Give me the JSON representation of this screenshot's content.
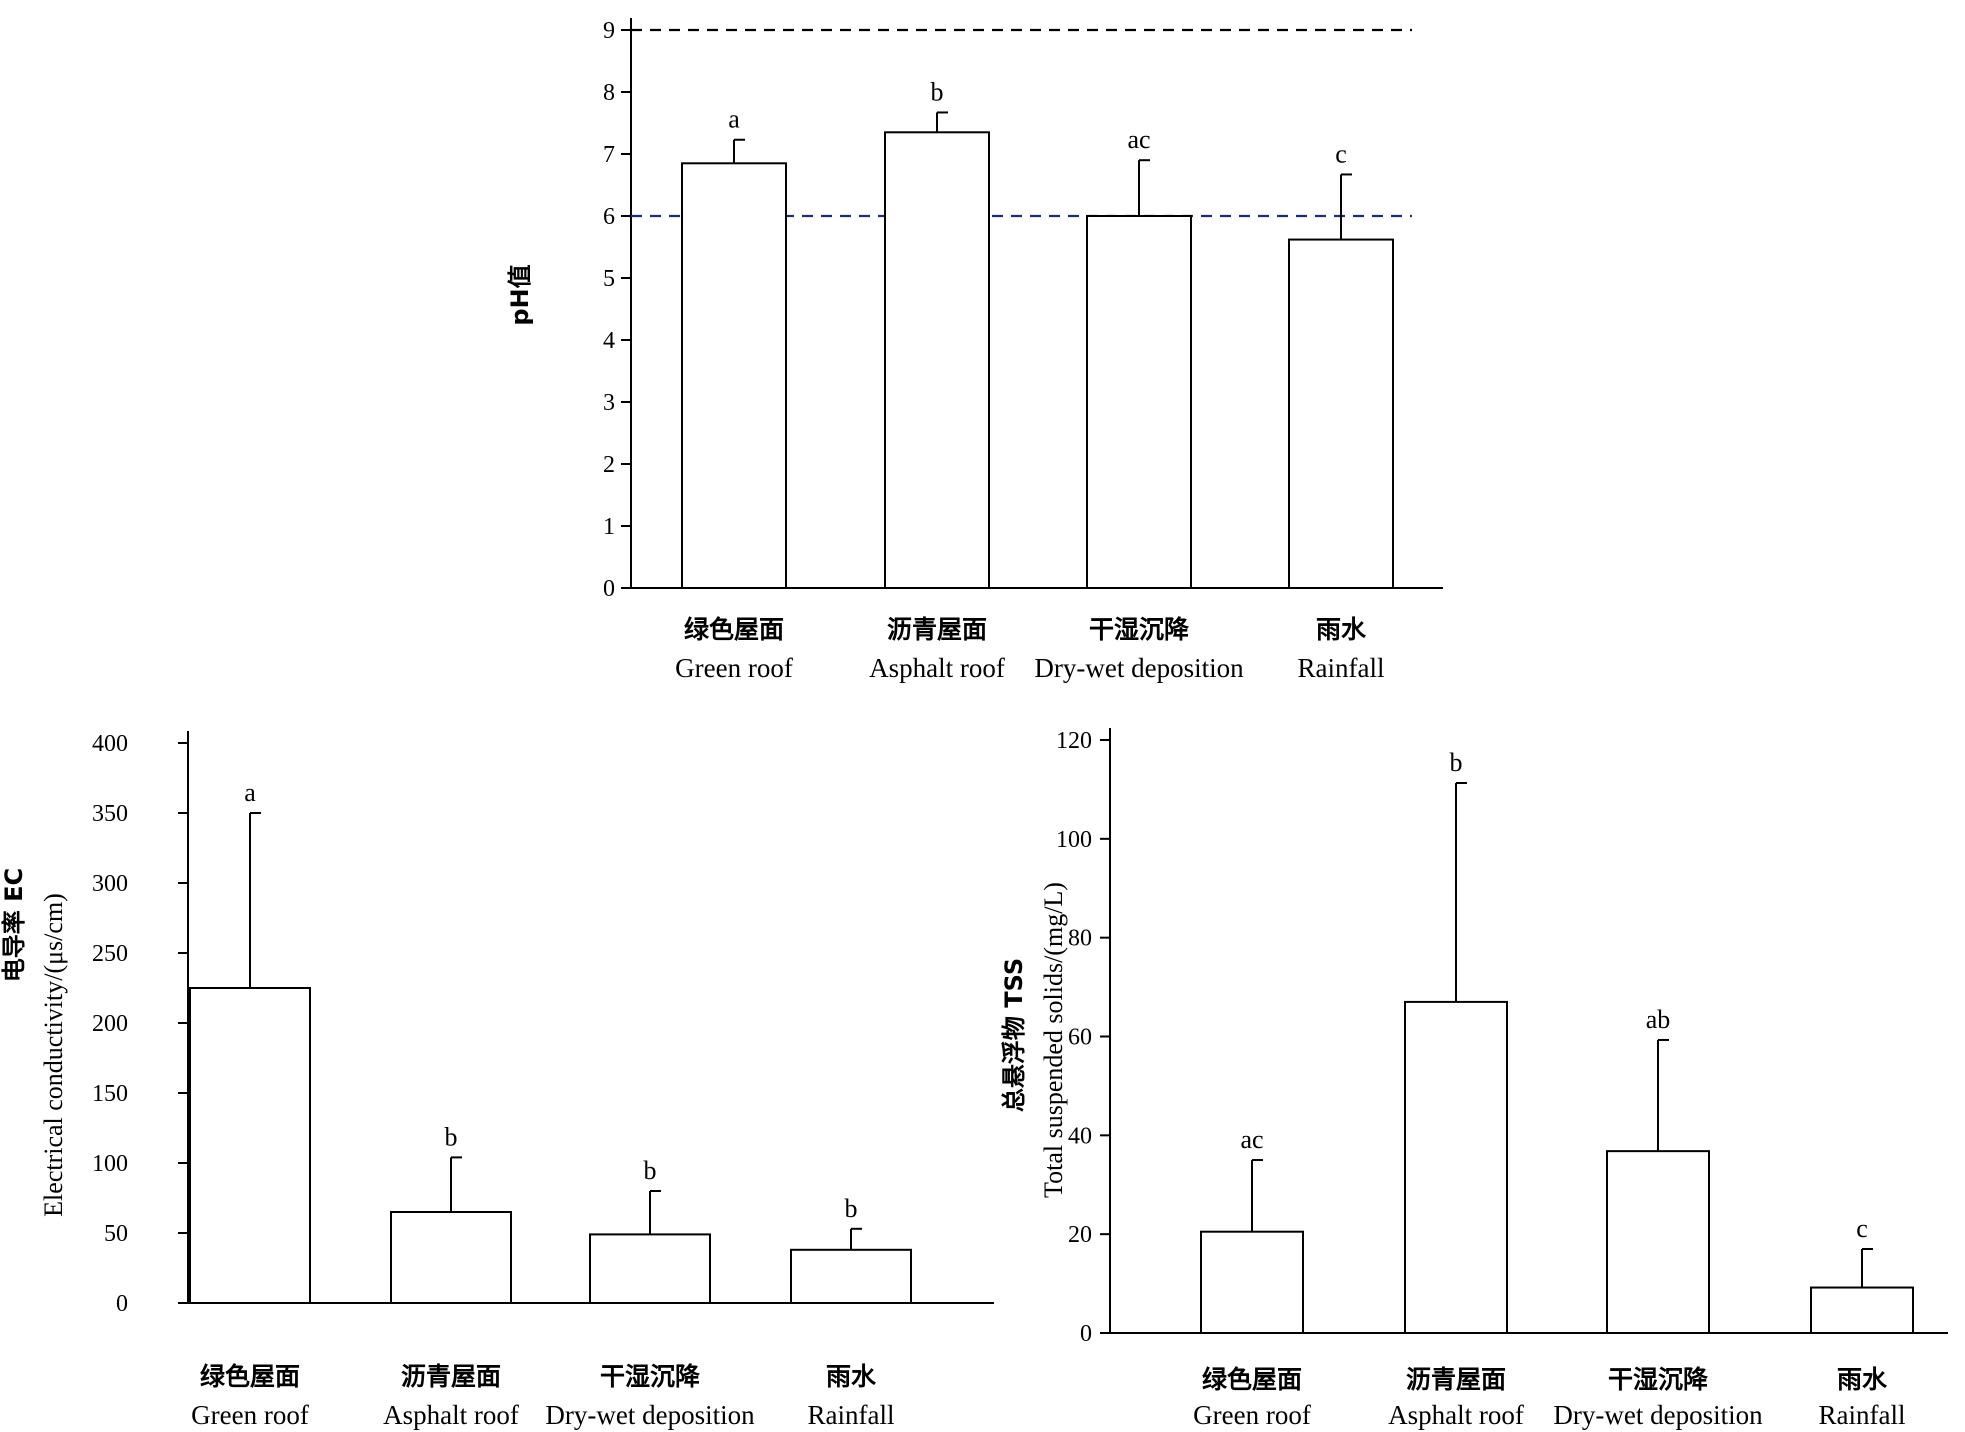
{
  "chart_data": [
    {
      "type": "bar",
      "categories": [
        "绿色屋面",
        "沥青屋面",
        "干湿沉降",
        "雨水"
      ],
      "categories_en": [
        "Green roof",
        "Asphalt  roof",
        "Dry-wet deposition",
        "Rainfall"
      ],
      "values": [
        6.85,
        7.35,
        6.0,
        5.62
      ],
      "errors": [
        0.38,
        0.32,
        0.9,
        1.05
      ],
      "significance": [
        "a",
        "b",
        "ac",
        "c"
      ],
      "ylabel": "pH值",
      "ylabel_en": "",
      "ylim": [
        0,
        9
      ],
      "yticks": [
        "0",
        "1",
        "2",
        "3",
        "4",
        "5",
        "6",
        "7",
        "8",
        "9"
      ],
      "reference_lines": [
        {
          "value": 9,
          "color": "#000000",
          "style": "dashed"
        },
        {
          "value": 6,
          "color": "#1f2a7a",
          "style": "dashed"
        }
      ],
      "bar_fill": "#ffffff",
      "grid": false
    },
    {
      "type": "bar",
      "categories": [
        "绿色屋面",
        "沥青屋面",
        "干湿沉降",
        "雨水"
      ],
      "categories_en": [
        "Green roof",
        "Asphalt roof",
        "Dry-wet deposition",
        "Rainfall"
      ],
      "values": [
        225,
        65,
        49,
        38
      ],
      "errors": [
        125,
        39,
        31,
        15
      ],
      "significance": [
        "a",
        "b",
        "b",
        "b"
      ],
      "ylabel": "电导率 EC",
      "ylabel_en": "Electrical conductivity/(μs/cm)",
      "ylim": [
        0,
        400
      ],
      "yticks": [
        "0",
        "50",
        "100",
        "150",
        "200",
        "250",
        "300",
        "350",
        "400"
      ],
      "bar_fill": "#ffffff",
      "grid": false
    },
    {
      "type": "bar",
      "categories": [
        "绿色屋面",
        "沥青屋面",
        "干湿沉降",
        "雨水"
      ],
      "categories_en": [
        "Green roof",
        "Asphalt  roof",
        "Dry-wet deposition",
        "Rainfall"
      ],
      "values": [
        20.5,
        67,
        36.8,
        9.2
      ],
      "errors": [
        14.5,
        44.3,
        22.5,
        7.8
      ],
      "significance": [
        "ac",
        "b",
        "ab",
        "c"
      ],
      "ylabel": "总悬浮物 TSS",
      "ylabel_en": "Total suspended solids/(mg/L)",
      "ylim": [
        0,
        120
      ],
      "yticks": [
        "0",
        "20",
        "40",
        "60",
        "80",
        "100",
        "120"
      ],
      "bar_fill": "#ffffff",
      "grid": false
    }
  ]
}
